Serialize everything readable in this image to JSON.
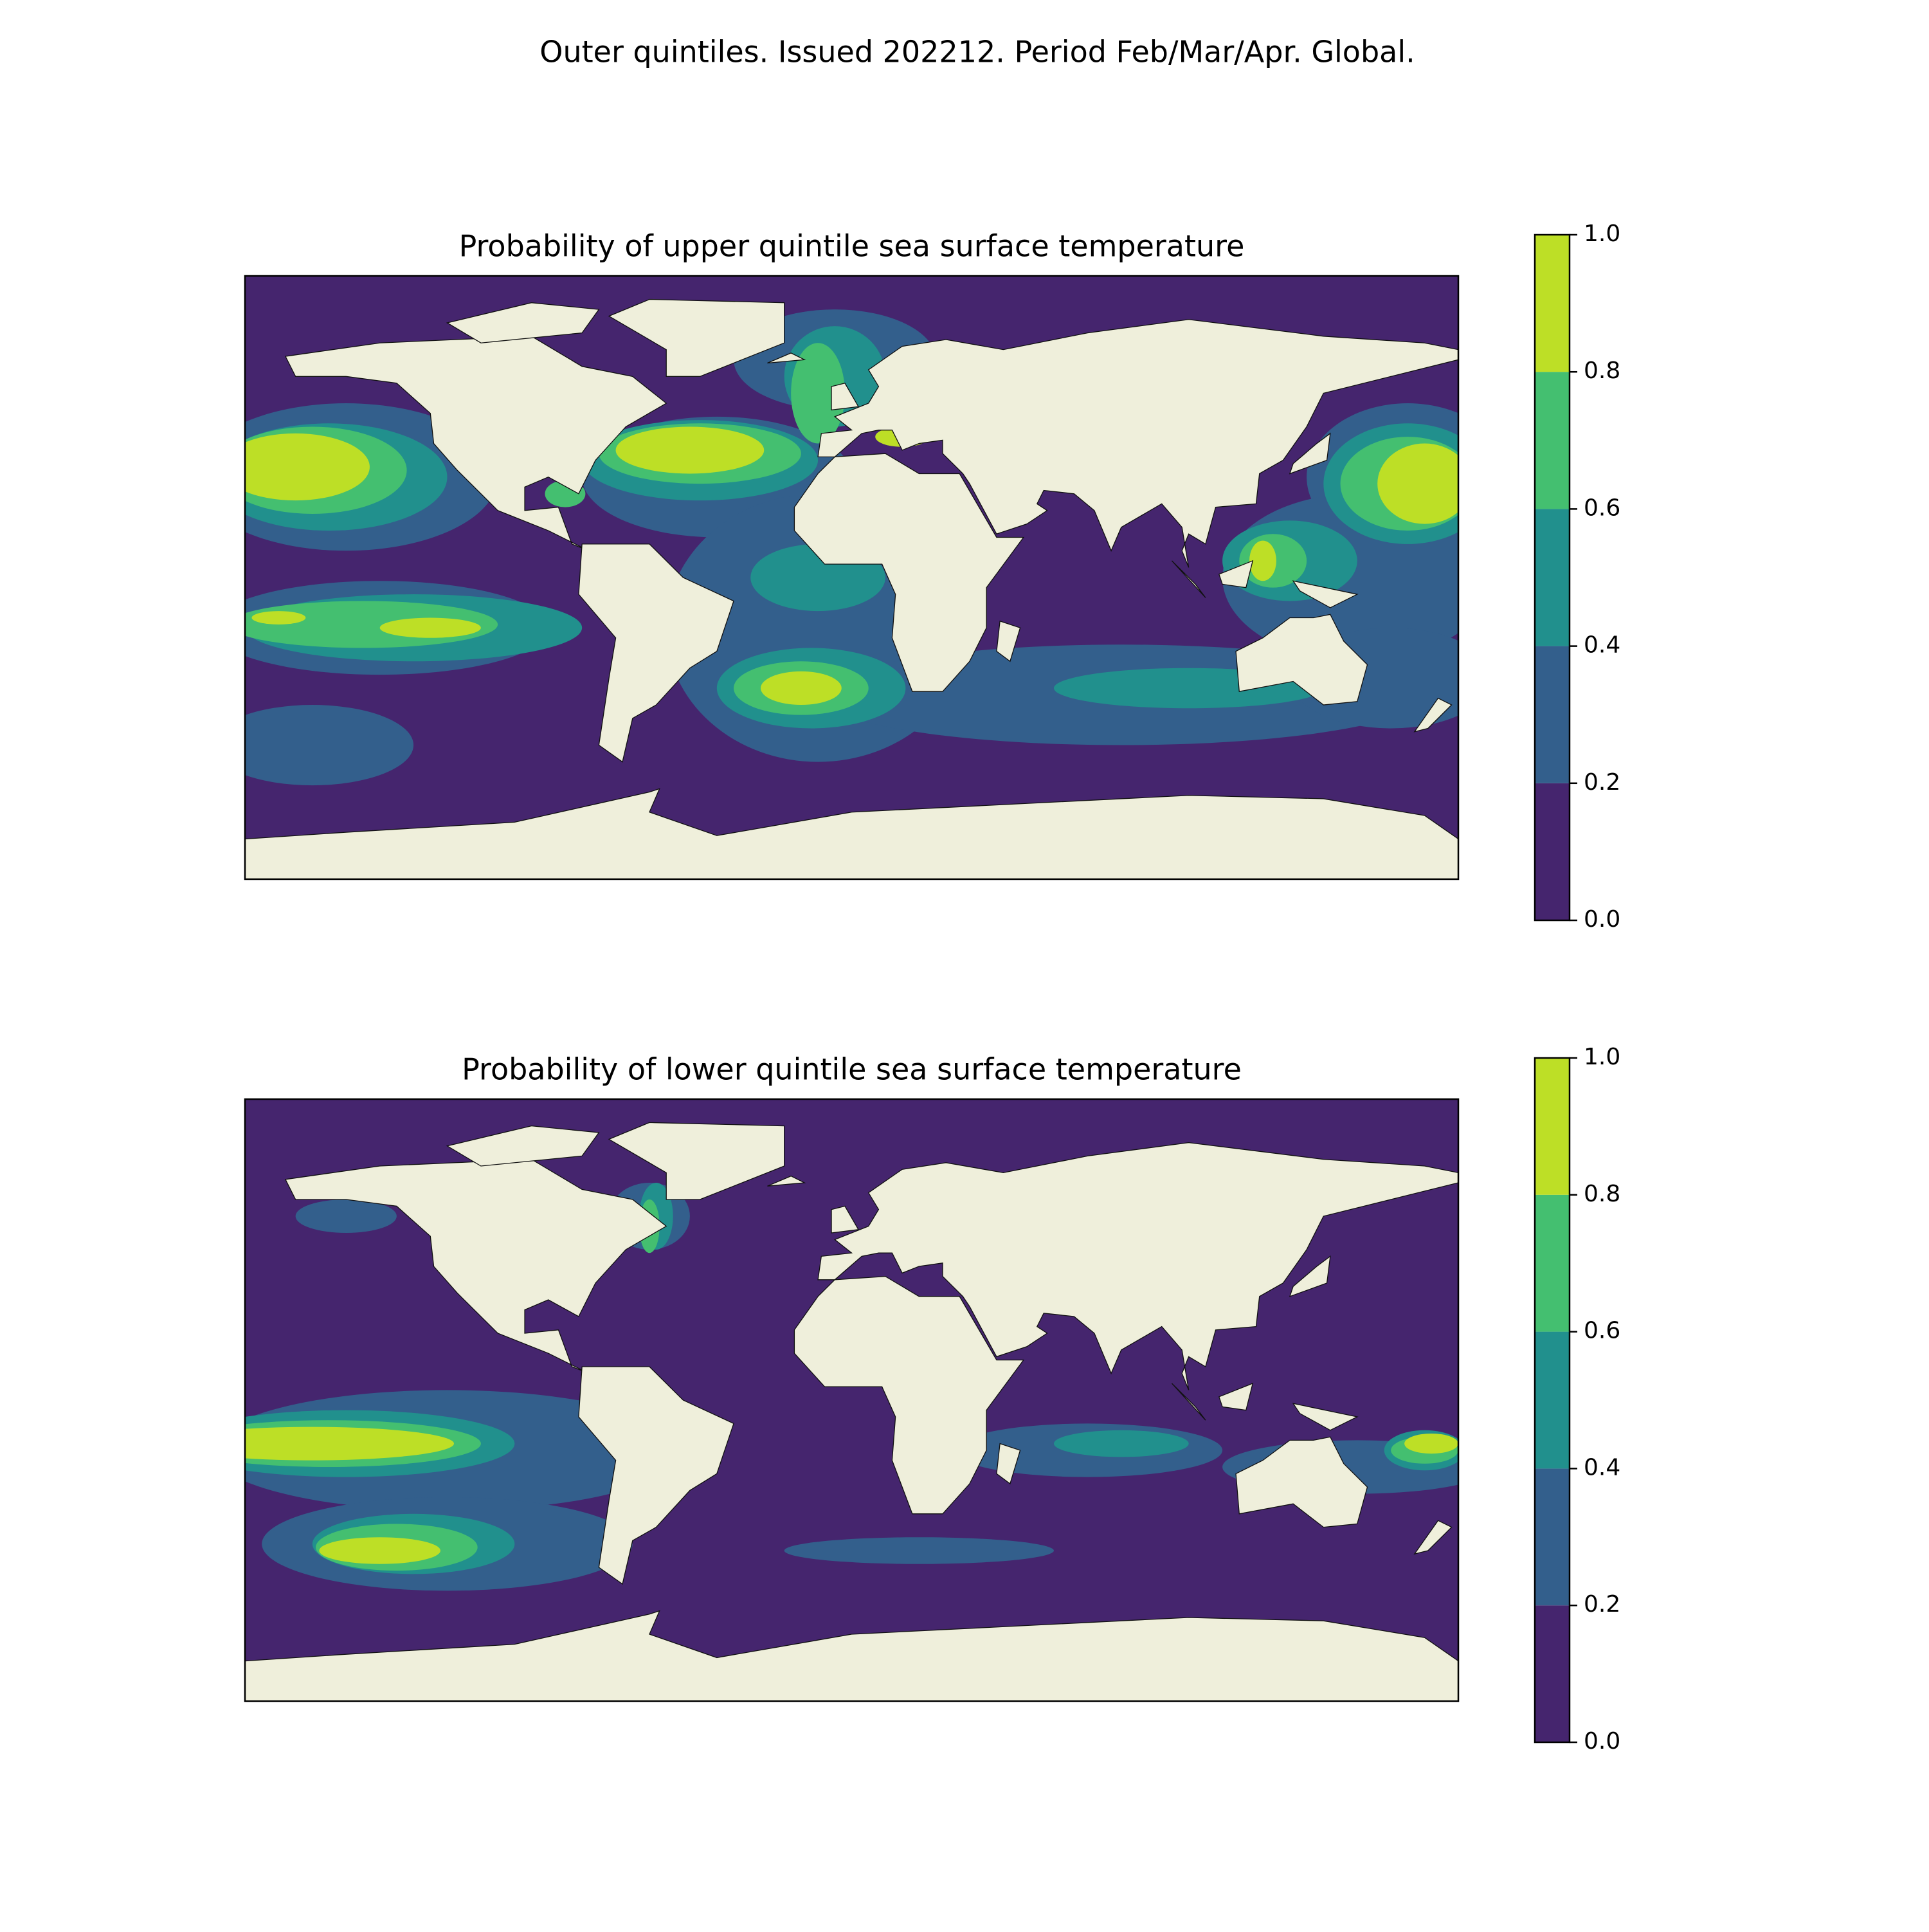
{
  "title": "Outer quintiles. Issued 202212. Period Feb/Mar/Apr. Global.",
  "panels": [
    {
      "title": "Probability of upper quintile sea surface temperature",
      "colorbar": {
        "lim": [
          0,
          1
        ],
        "ticks": [
          {
            "value": 0,
            "label": "0.0"
          },
          {
            "value": 0.2,
            "label": "0.2"
          },
          {
            "value": 0.4,
            "label": "0.4"
          },
          {
            "value": 0.6,
            "label": "0.6"
          },
          {
            "value": 0.8,
            "label": "0.8"
          },
          {
            "value": 1,
            "label": "1.0"
          }
        ],
        "colors": [
          "#45256e",
          "#335f8c",
          "#21908d",
          "#44bf70",
          "#bddf26"
        ]
      }
    },
    {
      "title": "Probability of lower quintile sea surface temperature",
      "colorbar": {
        "lim": [
          0,
          1
        ],
        "ticks": [
          {
            "value": 0,
            "label": "0.0"
          },
          {
            "value": 0.2,
            "label": "0.2"
          },
          {
            "value": 0.4,
            "label": "0.4"
          },
          {
            "value": 0.6,
            "label": "0.6"
          },
          {
            "value": 0.8,
            "label": "0.8"
          },
          {
            "value": 1,
            "label": "1.0"
          }
        ],
        "colors": [
          "#45256e",
          "#335f8c",
          "#21908d",
          "#44bf70",
          "#bddf26"
        ]
      }
    }
  ]
}
